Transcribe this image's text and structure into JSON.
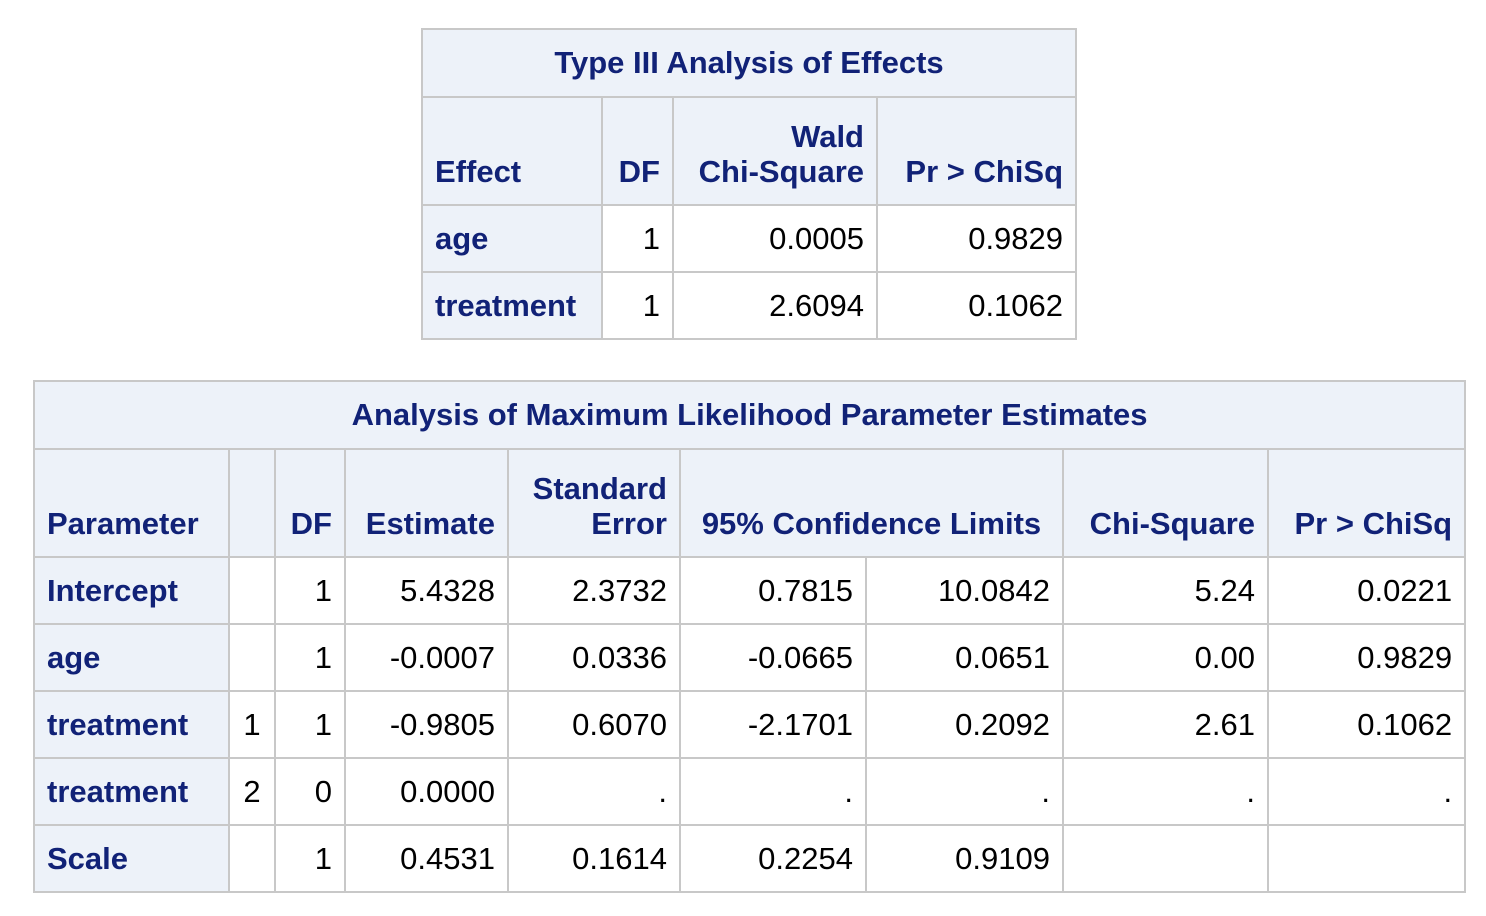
{
  "type3": {
    "title": "Type III Analysis of Effects",
    "headers": {
      "effect": "Effect",
      "df": "DF",
      "wald_line1": "Wald",
      "wald_line2": "Chi-Square",
      "pr": "Pr > ChiSq"
    },
    "rows": [
      {
        "effect": "age",
        "df": "1",
        "wald": "0.0005",
        "pr": "0.9829"
      },
      {
        "effect": "treatment",
        "df": "1",
        "wald": "2.6094",
        "pr": "0.1062"
      }
    ]
  },
  "mle": {
    "title": "Analysis of Maximum Likelihood Parameter Estimates",
    "headers": {
      "parameter": "Parameter",
      "level": "",
      "df": "DF",
      "estimate": "Estimate",
      "stderr_line1": "Standard",
      "stderr_line2": "Error",
      "ci": "95% Confidence Limits",
      "chisq": "Chi-Square",
      "pr": "Pr > ChiSq"
    },
    "rows": [
      {
        "parameter": "Intercept",
        "level": "",
        "df": "1",
        "estimate": "5.4328",
        "stderr": "2.3732",
        "lower": "0.7815",
        "upper": "10.0842",
        "chisq": "5.24",
        "pr": "0.0221"
      },
      {
        "parameter": "age",
        "level": "",
        "df": "1",
        "estimate": "-0.0007",
        "stderr": "0.0336",
        "lower": "-0.0665",
        "upper": "0.0651",
        "chisq": "0.00",
        "pr": "0.9829"
      },
      {
        "parameter": "treatment",
        "level": "1",
        "df": "1",
        "estimate": "-0.9805",
        "stderr": "0.6070",
        "lower": "-2.1701",
        "upper": "0.2092",
        "chisq": "2.61",
        "pr": "0.1062"
      },
      {
        "parameter": "treatment",
        "level": "2",
        "df": "0",
        "estimate": "0.0000",
        "stderr": ".",
        "lower": ".",
        "upper": ".",
        "chisq": ".",
        "pr": "."
      },
      {
        "parameter": "Scale",
        "level": "",
        "df": "1",
        "estimate": "0.4531",
        "stderr": "0.1614",
        "lower": "0.2254",
        "upper": "0.9109",
        "chisq": "",
        "pr": ""
      }
    ]
  },
  "colors": {
    "header_bg": "#edf2f9",
    "header_text": "#112277",
    "border": "#c8c8c8",
    "cell_text": "#000000"
  }
}
